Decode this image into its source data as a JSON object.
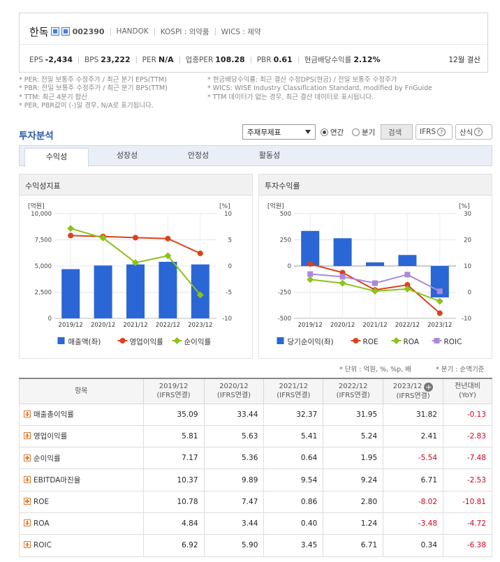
{
  "header": {
    "name": "한독",
    "code": "002390",
    "eng_name": "HANDOK",
    "market": "KOSPI : 의약품",
    "wics": "WICS : 제약",
    "metrics": [
      {
        "label": "EPS",
        "value": "-2,434"
      },
      {
        "label": "BPS",
        "value": "23,222"
      },
      {
        "label": "PER",
        "value": "N/A"
      },
      {
        "label": "업종PER",
        "value": "108.28"
      },
      {
        "label": "PBR",
        "value": "0.61"
      },
      {
        "label": "현금배당수익률",
        "value": "2.12%"
      }
    ],
    "settlement": "12월 결산"
  },
  "notes": {
    "left": [
      "* PER: 전일 보통주 수정주가 / 최근 분기 EPS(TTM)",
      "* PBR: 전일 보통주 수정주가 / 최근 분기 BPS(TTM)",
      "* TTM: 최근 4분기 합산",
      "* PER, PBR값이 (-)일 경우, N/A로 표기됩니다."
    ],
    "right": [
      "* 현금배당수익률: 최근 결산 수정DPS(현금) / 전일 보통주 수정주가",
      "* WICS: WISE Industry Classification Standard, modified by FnGuide",
      "* TTM 데이터가 없는 경우, 최근 결산 데이터로 표시됩니다."
    ]
  },
  "section": {
    "title": "투자분석",
    "select_value": "주재무제표",
    "radio_annual": "연간",
    "radio_quarter": "분기",
    "search_button": "검색",
    "ifrs_button": "IFRS",
    "formula_button": "산식"
  },
  "tabs": [
    "수익성",
    "성장성",
    "안정성",
    "활동성"
  ],
  "chart_panels": {
    "left_title": "수익성지표",
    "right_title": "투자수익률"
  },
  "chart_data": [
    {
      "type": "bar",
      "categories": [
        "2019/12",
        "2020/12",
        "2021/12",
        "2022/12",
        "2023/12"
      ],
      "series": [
        {
          "name": "매출액(좌)",
          "type": "bar",
          "axis": "left",
          "color": "#2a66d6",
          "values": [
            4700,
            5050,
            5150,
            5400,
            5150
          ]
        },
        {
          "name": "영업이익률",
          "type": "line",
          "axis": "right",
          "color": "#d9421c",
          "values": [
            5.81,
            5.63,
            5.41,
            5.24,
            2.41
          ]
        },
        {
          "name": "순이익률",
          "type": "line",
          "axis": "right",
          "color": "#8cc21b",
          "values": [
            7.17,
            5.36,
            0.64,
            1.95,
            -5.54
          ]
        }
      ],
      "left_unit": "[억원]",
      "right_unit": "[%]",
      "left_ticks": [
        "10,000",
        "7,500",
        "5,000",
        "2,500",
        "0"
      ],
      "right_ticks": [
        "10",
        "5",
        "0",
        "-5",
        "-10"
      ],
      "ylim_left": [
        0,
        10000
      ],
      "ylim_right": [
        -10,
        10
      ],
      "legend_placement": "bottom"
    },
    {
      "type": "bar",
      "categories": [
        "2019/12",
        "2020/12",
        "2021/12",
        "2022/12",
        "2023/12"
      ],
      "series": [
        {
          "name": "당기순이익(좌)",
          "type": "bar",
          "axis": "left",
          "color": "#2a66d6",
          "values": [
            335,
            265,
            35,
            105,
            -300
          ]
        },
        {
          "name": "ROE",
          "type": "line",
          "axis": "right",
          "color": "#d9421c",
          "values": [
            10.78,
            7.47,
            0.86,
            2.8,
            -8.02
          ]
        },
        {
          "name": "ROA",
          "type": "line",
          "axis": "right",
          "color": "#8cc21b",
          "values": [
            4.84,
            3.44,
            0.4,
            1.24,
            -3.48
          ]
        },
        {
          "name": "ROIC",
          "type": "line",
          "axis": "right",
          "color": "#a98ad8",
          "values": [
            6.92,
            5.9,
            3.45,
            6.71,
            0.34
          ]
        }
      ],
      "left_unit": "[억원]",
      "right_unit": "[%]",
      "left_ticks": [
        "500",
        "250",
        "0",
        "-250",
        "-500"
      ],
      "right_ticks": [
        "30",
        "20",
        "10",
        "0",
        "-10"
      ],
      "ylim_left": [
        -500,
        500
      ],
      "ylim_right": [
        -10,
        30
      ],
      "legend_placement": "bottom"
    }
  ],
  "unit_note": "* 단위 : 억원, %, %p, 배",
  "quarter_note": "* 분기 : 순액기준",
  "table": {
    "item_header": "항목",
    "columns": [
      {
        "year": "2019/12",
        "basis": "(IFRS연결)"
      },
      {
        "year": "2020/12",
        "basis": "(IFRS연결)"
      },
      {
        "year": "2021/12",
        "basis": "(IFRS연결)"
      },
      {
        "year": "2022/12",
        "basis": "(IFRS연결)"
      },
      {
        "year": "2023/12",
        "basis": "(IFRS연결)"
      }
    ],
    "yoy_header": "전년대비",
    "yoy_sub": "(YoY)",
    "rows": [
      {
        "label": "매출총이익률",
        "values": [
          "35.09",
          "33.44",
          "32.37",
          "31.95",
          "31.82"
        ],
        "yoy": "-0.13"
      },
      {
        "label": "영업이익률",
        "values": [
          "5.81",
          "5.63",
          "5.41",
          "5.24",
          "2.41"
        ],
        "yoy": "-2.83"
      },
      {
        "label": "순이익률",
        "values": [
          "7.17",
          "5.36",
          "0.64",
          "1.95",
          "-5.54"
        ],
        "yoy": "-7.48"
      },
      {
        "label": "EBITDA마진율",
        "values": [
          "10.37",
          "9.89",
          "9.54",
          "9.24",
          "6.71"
        ],
        "yoy": "-2.53"
      },
      {
        "label": "ROE",
        "values": [
          "10.78",
          "7.47",
          "0.86",
          "2.80",
          "-8.02"
        ],
        "yoy": "-10.81"
      },
      {
        "label": "ROA",
        "values": [
          "4.84",
          "3.44",
          "0.40",
          "1.24",
          "-3.48"
        ],
        "yoy": "-4.72"
      },
      {
        "label": "ROIC",
        "values": [
          "6.92",
          "5.90",
          "3.45",
          "6.71",
          "0.34"
        ],
        "yoy": "-6.38"
      }
    ]
  }
}
